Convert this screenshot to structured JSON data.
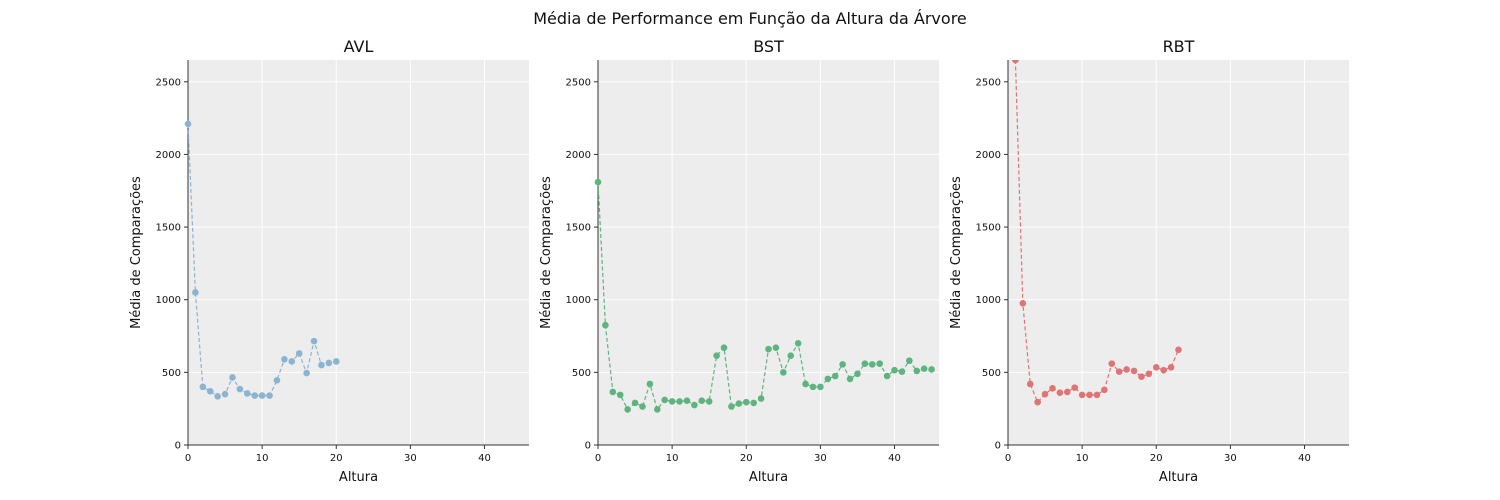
{
  "figure": {
    "title": "Média de Performance em Função da Altura da Árvore"
  },
  "chart_data": [
    {
      "type": "line",
      "title": "AVL",
      "xlabel": "Altura",
      "ylabel": "Média de Comparações",
      "xlim": [
        0,
        46
      ],
      "ylim": [
        0,
        2650
      ],
      "xticks": [
        "0",
        "10",
        "20",
        "30",
        "40"
      ],
      "yticks": [
        "0",
        "500",
        "1000",
        "1500",
        "2000",
        "2500"
      ],
      "grid": true,
      "color": "#8ab4d2",
      "line_style": "dashed",
      "marker": "circle",
      "x": [
        0,
        1,
        2,
        3,
        4,
        5,
        6,
        7,
        8,
        9,
        10,
        11,
        12,
        13,
        14,
        15,
        16,
        17,
        18,
        19,
        20
      ],
      "y": [
        2210,
        1050,
        400,
        370,
        335,
        350,
        465,
        385,
        355,
        340,
        340,
        340,
        445,
        590,
        575,
        630,
        495,
        715,
        550,
        565,
        575
      ]
    },
    {
      "type": "line",
      "title": "BST",
      "xlabel": "Altura",
      "ylabel": "Média de Comparações",
      "xlim": [
        0,
        46
      ],
      "ylim": [
        0,
        2650
      ],
      "xticks": [
        "0",
        "10",
        "20",
        "30",
        "40"
      ],
      "yticks": [
        "0",
        "500",
        "1000",
        "1500",
        "2000",
        "2500"
      ],
      "grid": true,
      "color": "#5db47e",
      "line_style": "dashed",
      "marker": "circle",
      "x": [
        0,
        1,
        2,
        3,
        4,
        5,
        6,
        7,
        8,
        9,
        10,
        11,
        12,
        13,
        14,
        15,
        16,
        17,
        18,
        19,
        20,
        21,
        22,
        23,
        24,
        25,
        26,
        27,
        28,
        29,
        30,
        31,
        32,
        33,
        34,
        35,
        36,
        37,
        38,
        39,
        40,
        41,
        42,
        43,
        44,
        45
      ],
      "y": [
        1810,
        825,
        365,
        345,
        245,
        290,
        265,
        420,
        245,
        310,
        300,
        300,
        305,
        275,
        305,
        300,
        615,
        670,
        265,
        285,
        295,
        290,
        320,
        660,
        670,
        500,
        615,
        700,
        420,
        400,
        400,
        455,
        475,
        555,
        455,
        490,
        560,
        555,
        560,
        475,
        515,
        505,
        580,
        510,
        525,
        520
      ]
    },
    {
      "type": "line",
      "title": "RBT",
      "xlabel": "Altura",
      "ylabel": "Média de Comparações",
      "xlim": [
        0,
        46
      ],
      "ylim": [
        0,
        2650
      ],
      "xticks": [
        "0",
        "10",
        "20",
        "30",
        "40"
      ],
      "yticks": [
        "0",
        "500",
        "1000",
        "1500",
        "2000",
        "2500"
      ],
      "grid": true,
      "color": "#e07373",
      "line_style": "dashed",
      "marker": "circle",
      "x": [
        1,
        2,
        3,
        4,
        5,
        6,
        7,
        8,
        9,
        10,
        11,
        12,
        13,
        14,
        15,
        16,
        17,
        18,
        19,
        20,
        21,
        22,
        23
      ],
      "y": [
        2650,
        975,
        420,
        295,
        350,
        390,
        360,
        365,
        395,
        345,
        345,
        345,
        380,
        560,
        505,
        520,
        510,
        470,
        490,
        535,
        515,
        535,
        655
      ]
    }
  ]
}
